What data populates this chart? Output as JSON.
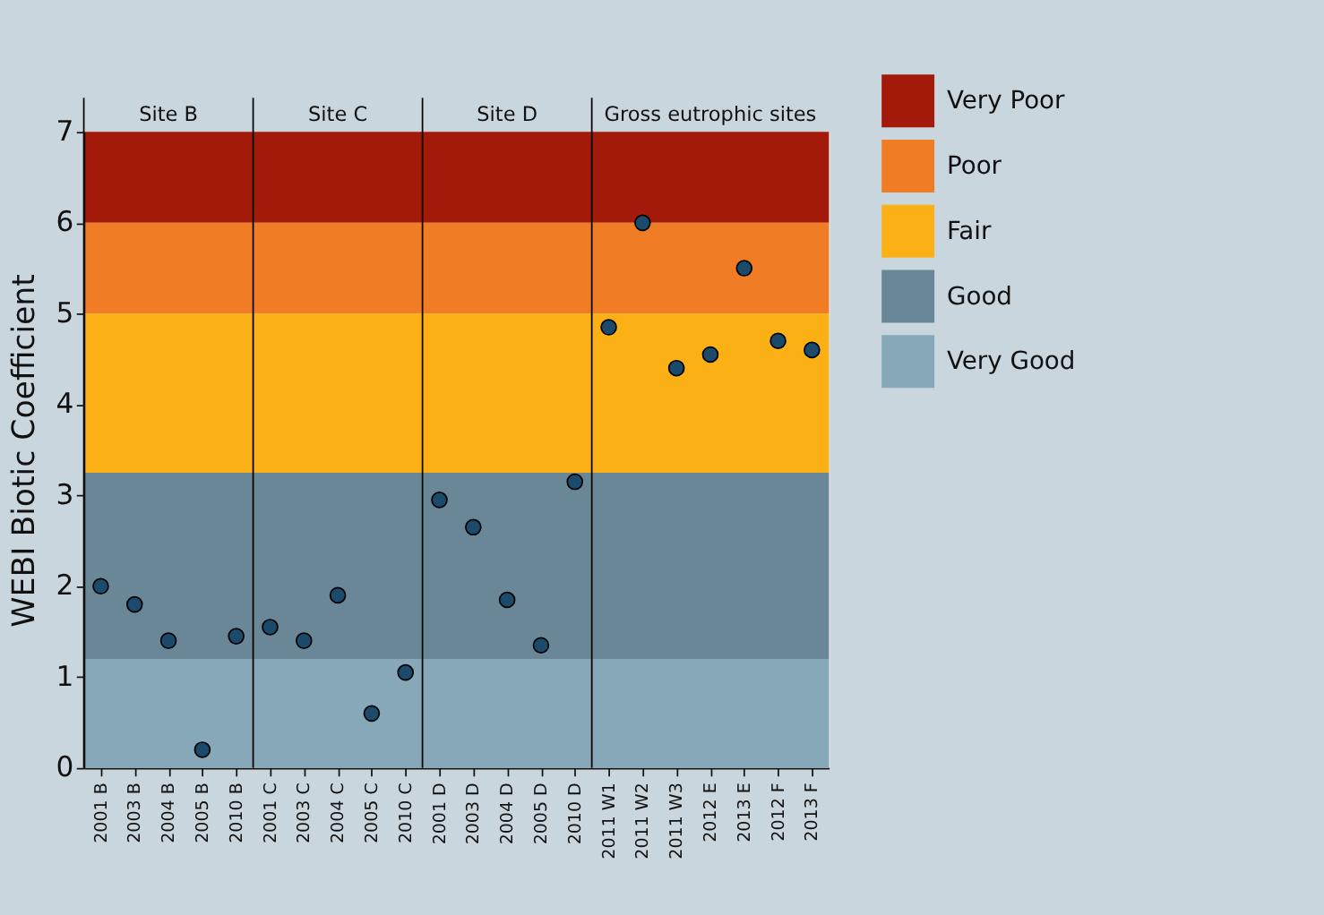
{
  "chart_data": {
    "type": "scatter",
    "ylabel": "WEBI Biotic Coefficient",
    "categories": [
      "2001 B",
      "2003 B",
      "2004 B",
      "2005 B",
      "2010 B",
      "2001 C",
      "2003 C",
      "2004 C",
      "2005 C",
      "2010 C",
      "2001 D",
      "2003 D",
      "2004 D",
      "2005 D",
      "2010 D",
      "2011 W1",
      "2011 W2",
      "2011 W3",
      "2012 E",
      "2013 E",
      "2012 F",
      "2013 F"
    ],
    "series": [
      {
        "color": "#1b4a6b",
        "values": [
          2.0,
          1.8,
          1.4,
          0.2,
          1.45,
          1.55,
          1.4,
          1.9,
          0.6,
          1.05,
          2.95,
          2.65,
          1.85,
          1.35,
          3.15,
          4.85,
          6.0,
          4.4,
          4.55,
          5.5,
          4.7,
          4.6
        ]
      }
    ],
    "ylim": [
      0,
      7
    ],
    "yticks": [
      0,
      1,
      2,
      3,
      4,
      5,
      6,
      7
    ],
    "grid": false,
    "marker": "circle",
    "legend": "right",
    "bands": [
      {
        "axis": "y",
        "from": 6,
        "to": 7,
        "label": "Very Poor",
        "color": "#a31a0a"
      },
      {
        "axis": "y",
        "from": 5,
        "to": 6,
        "label": "Poor",
        "color": "#f07d26"
      },
      {
        "axis": "y",
        "from": 3.25,
        "to": 5,
        "label": "Fair",
        "color": "#fbb116"
      },
      {
        "axis": "y",
        "from": 1.2,
        "to": 3.25,
        "label": "Good",
        "color": "#6a8797"
      },
      {
        "axis": "y",
        "from": 0,
        "to": 1.2,
        "label": "Very Good",
        "color": "#87a8b8"
      }
    ],
    "annotations": [
      "Site B",
      "Site C",
      "Site D",
      "Gross eutrophic sites"
    ]
  }
}
